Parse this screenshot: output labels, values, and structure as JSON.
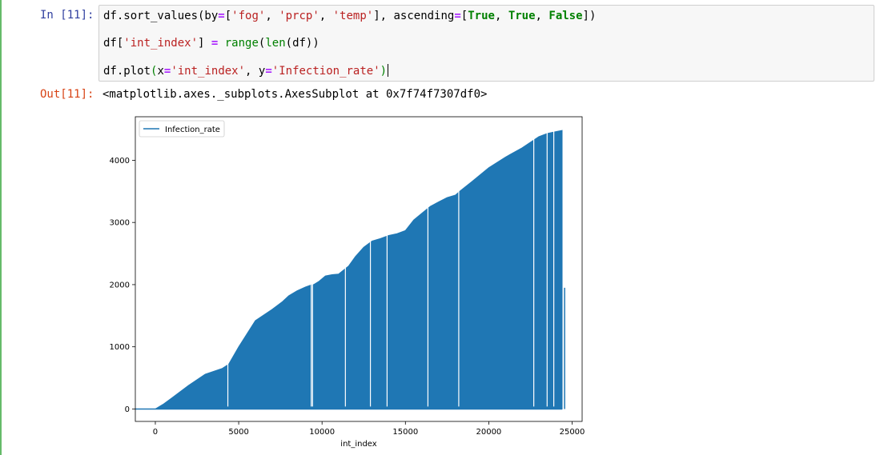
{
  "cell": {
    "input_prompt": "In [11]:",
    "output_prompt": "Out[11]:",
    "code_line1": [
      {
        "t": "df.sort_values(by",
        "c": ""
      },
      {
        "t": "=",
        "c": "kw"
      },
      {
        "t": "[",
        "c": ""
      },
      {
        "t": "'fog'",
        "c": "str"
      },
      {
        "t": ", ",
        "c": ""
      },
      {
        "t": "'prcp'",
        "c": "str"
      },
      {
        "t": ", ",
        "c": ""
      },
      {
        "t": "'temp'",
        "c": "str"
      },
      {
        "t": "], ascending",
        "c": ""
      },
      {
        "t": "=",
        "c": "kw"
      },
      {
        "t": "[",
        "c": ""
      },
      {
        "t": "True",
        "c": "bool"
      },
      {
        "t": ", ",
        "c": ""
      },
      {
        "t": "True",
        "c": "bool"
      },
      {
        "t": ", ",
        "c": ""
      },
      {
        "t": "False",
        "c": "bool"
      },
      {
        "t": "])",
        "c": ""
      }
    ],
    "code_line2": [
      {
        "t": "df[",
        "c": ""
      },
      {
        "t": "'int_index'",
        "c": "str"
      },
      {
        "t": "] ",
        "c": ""
      },
      {
        "t": "=",
        "c": "kw"
      },
      {
        "t": " ",
        "c": ""
      },
      {
        "t": "range",
        "c": "bi"
      },
      {
        "t": "(",
        "c": ""
      },
      {
        "t": "len",
        "c": "bi"
      },
      {
        "t": "(df))",
        "c": ""
      }
    ],
    "code_line3": [
      {
        "t": "df.plot",
        "c": ""
      },
      {
        "t": "(",
        "c": "paren-hl"
      },
      {
        "t": "x",
        "c": ""
      },
      {
        "t": "=",
        "c": "kw"
      },
      {
        "t": "'int_index'",
        "c": "str"
      },
      {
        "t": ", y",
        "c": ""
      },
      {
        "t": "=",
        "c": "kw"
      },
      {
        "t": "'Infection_rate'",
        "c": "str"
      },
      {
        "t": ")",
        "c": "paren-hl"
      }
    ],
    "output_text": "<matplotlib.axes._subplots.AxesSubplot at 0x7f74f7307df0>"
  },
  "chart_data": {
    "type": "line",
    "title": "",
    "xlabel": "int_index",
    "ylabel": "",
    "xlim": [
      -1200,
      25600
    ],
    "ylim": [
      -200,
      4700
    ],
    "xticks": [
      0,
      5000,
      10000,
      15000,
      20000,
      25000
    ],
    "yticks": [
      0,
      1000,
      2000,
      3000,
      4000
    ],
    "legend_position": "top-left",
    "color": "#1f77b4",
    "series": [
      {
        "name": "Infection_rate",
        "envelope_x": [
          0,
          500,
          1000,
          2000,
          3000,
          4000,
          4400,
          5000,
          6000,
          7000,
          7600,
          8000,
          8500,
          9000,
          9300,
          9500,
          9800,
          10200,
          10600,
          11000,
          11600,
          12000,
          12500,
          13000,
          13500,
          14000,
          14500,
          15000,
          15500,
          16000,
          16500,
          17000,
          17500,
          18000,
          18300,
          19000,
          20000,
          21000,
          22000,
          23000,
          23500,
          24000,
          24400
        ],
        "envelope_y": [
          0,
          80,
          180,
          380,
          560,
          650,
          720,
          1000,
          1420,
          1600,
          1720,
          1820,
          1900,
          1960,
          1990,
          2000,
          2050,
          2140,
          2160,
          2170,
          2300,
          2450,
          2600,
          2700,
          2740,
          2790,
          2820,
          2870,
          3040,
          3150,
          3260,
          3330,
          3400,
          3440,
          3510,
          3660,
          3880,
          4050,
          4200,
          4380,
          4430,
          4460,
          4480
        ]
      }
    ]
  }
}
